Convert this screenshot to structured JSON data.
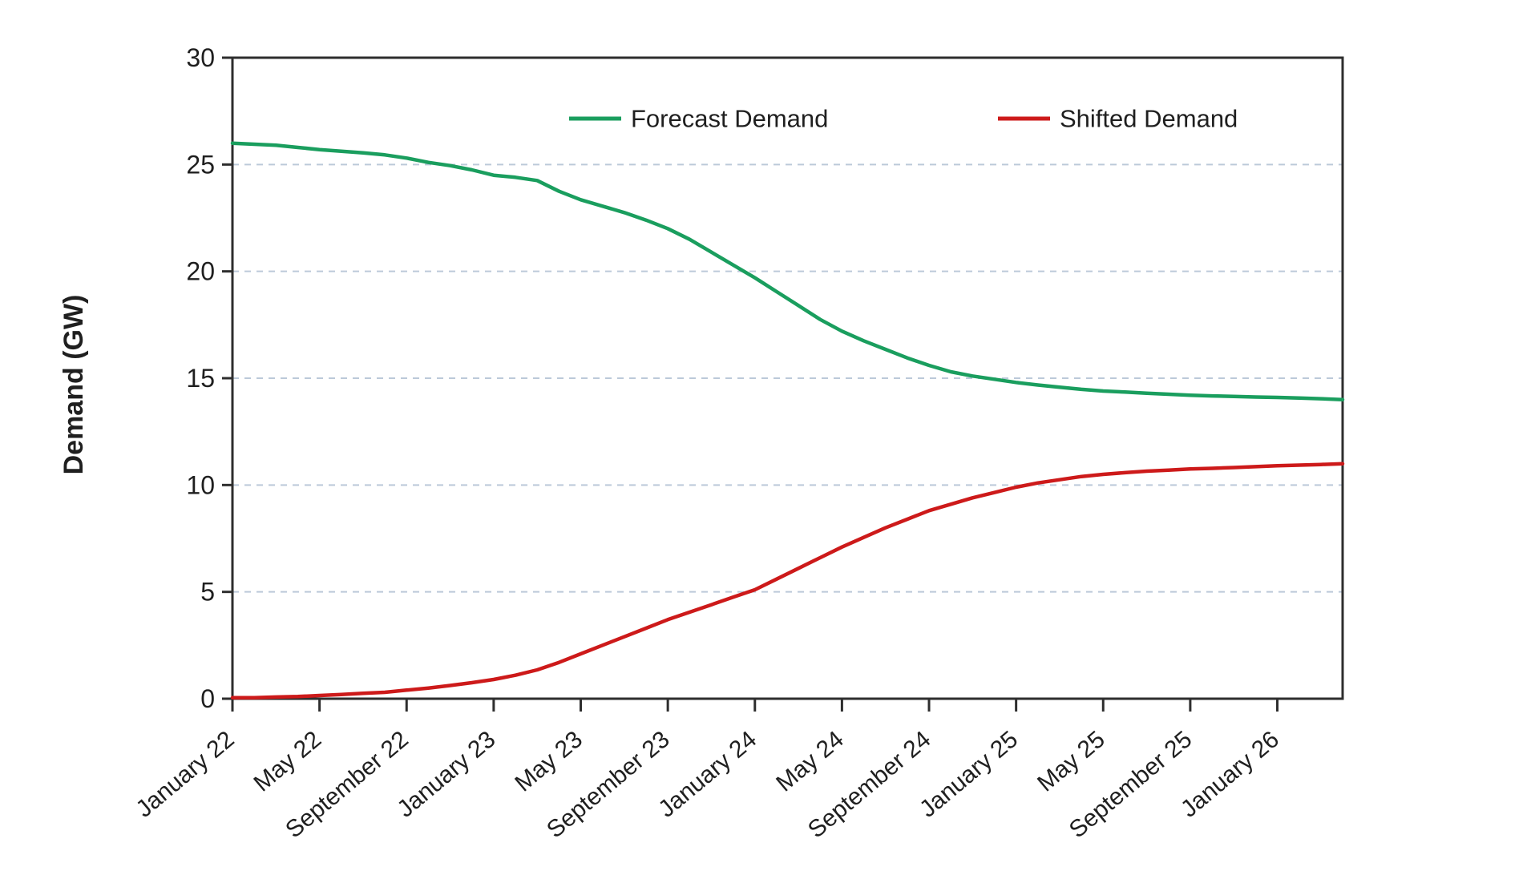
{
  "colors": {
    "background": "#ffffff",
    "axis": "#2e2e2e",
    "grid": "#bcc9d9",
    "text": "#1f1f1f",
    "forecast_green": "#1a9e5e",
    "shifted_red": "#cd1a1a"
  },
  "chart_data": {
    "type": "line",
    "title": "",
    "xlabel": "",
    "ylabel": "Demand (GW)",
    "ylim": [
      0,
      30
    ],
    "y_ticks": [
      0,
      5,
      10,
      15,
      20,
      25,
      30
    ],
    "grid": "horizontal-dashed-at-5-10-15-20-25",
    "legend_position": "top-inside",
    "x_unit": "month",
    "months_total": 52,
    "x_tick_month_index": [
      0,
      4,
      8,
      12,
      16,
      20,
      24,
      28,
      32,
      36,
      40,
      44,
      48
    ],
    "x_tick_labels": [
      "January 22",
      "May 22",
      "September 22",
      "January 23",
      "May 23",
      "September 23",
      "January 24",
      "May 24",
      "September 24",
      "January 25",
      "May 25",
      "September 25",
      "January 26"
    ],
    "series": [
      {
        "name": "Forecast Demand",
        "color": "#1a9e5e",
        "values": [
          26.0,
          25.95,
          25.9,
          25.8,
          25.7,
          25.62,
          25.55,
          25.45,
          25.3,
          25.1,
          24.95,
          24.75,
          24.5,
          24.4,
          24.25,
          23.75,
          23.35,
          23.05,
          22.75,
          22.4,
          22.0,
          21.5,
          20.9,
          20.3,
          19.7,
          19.05,
          18.4,
          17.75,
          17.2,
          16.75,
          16.35,
          15.95,
          15.6,
          15.3,
          15.1,
          14.95,
          14.8,
          14.68,
          14.58,
          14.48,
          14.4,
          14.35,
          14.3,
          14.25,
          14.2,
          14.17,
          14.15,
          14.12,
          14.1,
          14.07,
          14.04,
          14.0
        ]
      },
      {
        "name": "Shifted Demand",
        "color": "#cd1a1a",
        "values": [
          0.05,
          0.05,
          0.08,
          0.1,
          0.15,
          0.2,
          0.25,
          0.3,
          0.4,
          0.5,
          0.62,
          0.75,
          0.9,
          1.1,
          1.35,
          1.7,
          2.1,
          2.5,
          2.9,
          3.3,
          3.7,
          4.05,
          4.4,
          4.75,
          5.1,
          5.6,
          6.1,
          6.6,
          7.1,
          7.55,
          8.0,
          8.4,
          8.8,
          9.1,
          9.4,
          9.65,
          9.9,
          10.1,
          10.25,
          10.4,
          10.5,
          10.58,
          10.65,
          10.7,
          10.75,
          10.78,
          10.82,
          10.86,
          10.9,
          10.93,
          10.96,
          11.0
        ]
      }
    ]
  }
}
